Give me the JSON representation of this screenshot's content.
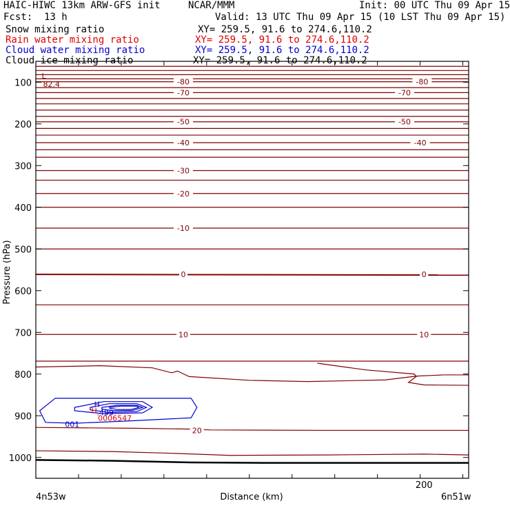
{
  "header": {
    "model_title": "HAIC-HIWC 13km ARW-GFS init",
    "org": "NCAR/MMM",
    "init": "Init: 00 UTC Thu 09 Apr 15",
    "fcst_label": "Fcst:",
    "fcst_value": "13 h",
    "valid": "Valid: 13 UTC Thu 09 Apr 15 (10 LST Thu 09 Apr 15)"
  },
  "legend": [
    {
      "name": "Snow mixing ratio",
      "xy": "XY= 259.5, 91.6 to 274.6,110.2",
      "color": "#000000"
    },
    {
      "name": "Rain water mixing ratio",
      "xy": "XY= 259.5, 91.6 to 274.6,110.2",
      "color": "#e00000"
    },
    {
      "name": "Cloud water mixing ratio",
      "xy": "XY= 259.5, 91.6 to 274.6,110.2",
      "color": "#0000cc"
    },
    {
      "name": "Cloud ice mixing ratio",
      "xy": "XY= 259.5, 91.6 to 274.6,110.2",
      "color": "#000000"
    }
  ],
  "chart_data": {
    "type": "line",
    "subtype": "vertical cross-section contour",
    "ylabel": "Pressure (hPa)",
    "xlabel": "Distance (km)",
    "x_start_label": "4n53w",
    "x_end_label": "6n51w",
    "xlim": [
      0,
      223
    ],
    "ylim": [
      1050,
      50
    ],
    "y_ticks": [
      100,
      200,
      300,
      400,
      500,
      600,
      700,
      800,
      900,
      1000
    ],
    "x_ticks": [
      0,
      22,
      44,
      66,
      88,
      110,
      132,
      154,
      176,
      198,
      220
    ],
    "x_tick_labels": [
      {
        "x": 200,
        "label": "200"
      }
    ],
    "temperature_color": "#800000",
    "temp_isotherms": [
      {
        "p": 62,
        "label": null
      },
      {
        "p": 72,
        "label": null
      },
      {
        "p": 82,
        "label": null
      },
      {
        "p": 92,
        "label": null
      },
      {
        "p": 99,
        "label": "-80"
      },
      {
        "p": 113,
        "label": null
      },
      {
        "p": 125,
        "label": "-70"
      },
      {
        "p": 139,
        "label": null
      },
      {
        "p": 152,
        "label": null
      },
      {
        "p": 167,
        "label": null
      },
      {
        "p": 182,
        "label": null
      },
      {
        "p": 195,
        "label": "-50"
      },
      {
        "p": 211,
        "label": null
      },
      {
        "p": 227,
        "label": null
      },
      {
        "p": 245,
        "label": "-40"
      },
      {
        "p": 262,
        "label": null
      },
      {
        "p": 280,
        "label": null
      },
      {
        "p": 312,
        "label": "-30"
      },
      {
        "p": 335,
        "label": null
      },
      {
        "p": 367,
        "label": "-20"
      },
      {
        "p": 400,
        "label": null
      },
      {
        "p": 450,
        "label": "-10"
      },
      {
        "p": 500,
        "label": null
      },
      {
        "p": 561,
        "label": "0"
      },
      {
        "p": 634,
        "label": null
      },
      {
        "p": 705,
        "label": "10"
      },
      {
        "p": 769,
        "label": null
      }
    ],
    "temp_labels_extra": [
      {
        "label": "-80",
        "x": 199
      },
      {
        "label": "-70",
        "x": 190
      },
      {
        "label": "-50",
        "x": 190
      },
      {
        "label": "-40",
        "x": 198
      },
      {
        "label": "0",
        "x": 200
      },
      {
        "label": "10",
        "x": 200
      }
    ],
    "temp_label_x": 76,
    "wiggly_isotherms": [
      {
        "points": [
          [
            0,
            783
          ],
          [
            33,
            780
          ],
          [
            60,
            785
          ],
          [
            70,
            797
          ],
          [
            73,
            793
          ],
          [
            79,
            806
          ],
          [
            110,
            815
          ],
          [
            140,
            818
          ],
          [
            180,
            814
          ],
          [
            196,
            805
          ],
          [
            210,
            802
          ],
          [
            223,
            802
          ]
        ],
        "label": null
      },
      {
        "points": [
          [
            145,
            774
          ],
          [
            170,
            790
          ],
          [
            195,
            800
          ],
          [
            196,
            806
          ],
          [
            192,
            820
          ],
          [
            200,
            826
          ],
          [
            223,
            827
          ]
        ],
        "label": null
      },
      {
        "points": [
          [
            0,
            928
          ],
          [
            50,
            930
          ],
          [
            80,
            932
          ],
          [
            90,
            934
          ],
          [
            150,
            935
          ],
          [
            223,
            935
          ]
        ],
        "label": "20",
        "label_x": 83,
        "label_p": 935
      },
      {
        "points": [
          [
            0,
            984
          ],
          [
            40,
            986
          ],
          [
            70,
            990
          ],
          [
            100,
            995
          ],
          [
            150,
            994
          ],
          [
            200,
            992
          ],
          [
            223,
            994
          ]
        ],
        "label": null
      }
    ],
    "surface_line": [
      [
        0,
        1006
      ],
      [
        40,
        1008
      ],
      [
        80,
        1012
      ],
      [
        120,
        1013
      ],
      [
        180,
        1013
      ],
      [
        223,
        1013
      ]
    ],
    "cloud_water": {
      "color": "#0000cc",
      "contours": [
        [
          [
            2,
            888
          ],
          [
            10,
            858
          ],
          [
            80,
            858
          ],
          [
            83,
            880
          ],
          [
            80,
            905
          ],
          [
            50,
            912
          ],
          [
            20,
            918
          ],
          [
            5,
            916
          ]
        ],
        [
          [
            20,
            880
          ],
          [
            35,
            866
          ],
          [
            55,
            866
          ],
          [
            60,
            880
          ],
          [
            55,
            893
          ],
          [
            35,
            895
          ],
          [
            20,
            888
          ]
        ],
        [
          [
            28,
            880
          ],
          [
            38,
            871
          ],
          [
            52,
            871
          ],
          [
            57,
            880
          ],
          [
            52,
            890
          ],
          [
            38,
            892
          ],
          [
            28,
            886
          ]
        ],
        [
          [
            34,
            880
          ],
          [
            42,
            875
          ],
          [
            52,
            875
          ],
          [
            55,
            880
          ],
          [
            50,
            887
          ],
          [
            40,
            888
          ],
          [
            34,
            884
          ]
        ],
        [
          [
            38,
            880
          ],
          [
            44,
            877
          ],
          [
            52,
            877
          ],
          [
            53,
            880
          ],
          [
            49,
            885
          ],
          [
            42,
            885
          ],
          [
            38,
            882
          ]
        ]
      ],
      "low_label": "001",
      "low_label_at": [
        15,
        920
      ],
      "high_label": "H",
      "high_value": ".499",
      "high_at": [
        30,
        872
      ]
    },
    "rain_water": {
      "color": "#e00000",
      "high_label": "H",
      "high_at": [
        30,
        887
      ],
      "value_label": "0006547",
      "value_at": [
        32,
        905
      ]
    },
    "low_marker": {
      "label": "L",
      "value": "82.4",
      "p": 85,
      "x": 3
    }
  }
}
